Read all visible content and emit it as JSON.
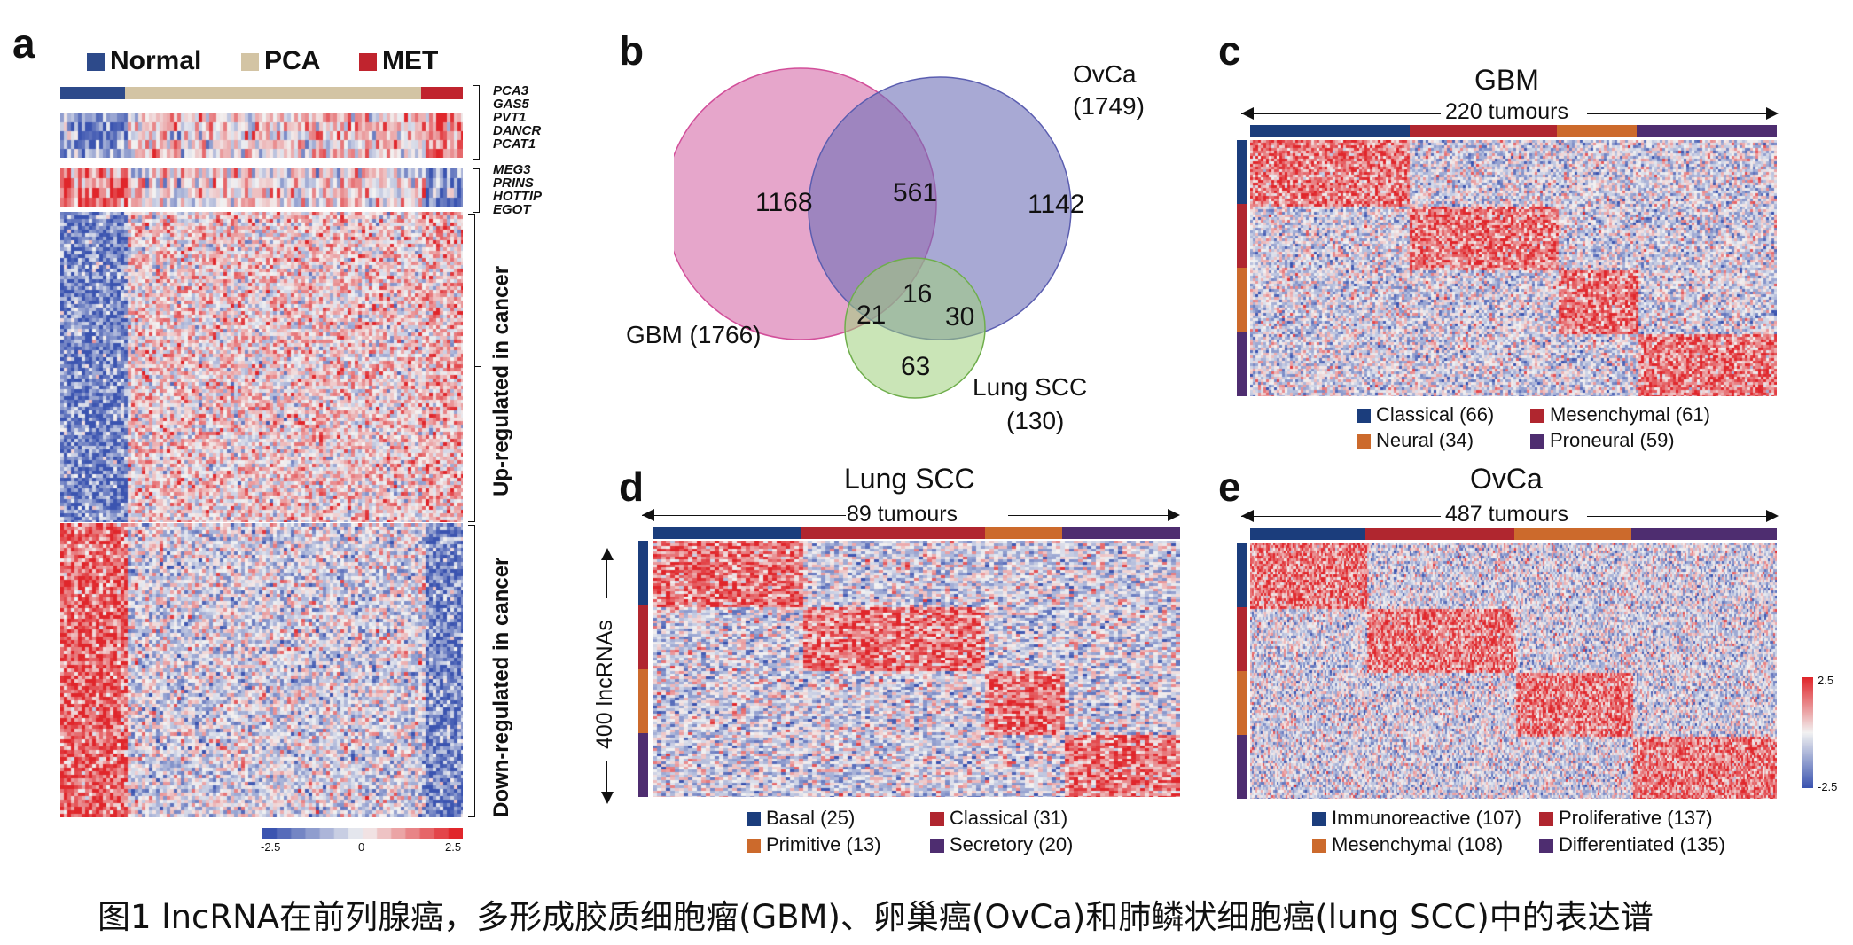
{
  "colors": {
    "normal": "#2d4a8a",
    "pca": "#d3c4a4",
    "met": "#c0242e",
    "heat_high": "#e0262b",
    "heat_mid": "#f2f2f2",
    "heat_low": "#3b54b0",
    "classical": "#1b3d7c",
    "mesenchymal": "#b0262f",
    "neural": "#cc6a2c",
    "proneural": "#4e2d70",
    "venn_gbm": "#d66aa8",
    "venn_ovca": "#7a7dc0",
    "venn_lung": "#9fd07c"
  },
  "panel_a": {
    "letter": "a",
    "legend": [
      {
        "label": "Normal",
        "color": "#2d4a8a"
      },
      {
        "label": "PCA",
        "color": "#d3c4a4"
      },
      {
        "label": "MET",
        "color": "#c0242e"
      }
    ],
    "genes_up": [
      "PCA3",
      "GAS5",
      "PVT1",
      "DANCR",
      "PCAT1"
    ],
    "genes_down": [
      "MEG3",
      "PRINS",
      "HOTTIP",
      "EGOT"
    ],
    "up_label": "Up-regulated in cancer",
    "down_label": "Down-regulated in cancer",
    "scale_min": "-2.5",
    "scale_mid": "0",
    "scale_max": "2.5"
  },
  "panel_b": {
    "letter": "b",
    "sets": {
      "gbm": "GBM (1766)",
      "ovca_name": "OvCa",
      "ovca_count": "(1749)",
      "lung_name": "Lung SCC",
      "lung_count": "(130)"
    },
    "regions": {
      "gbm_only": "1168",
      "gbm_ovca": "561",
      "ovca_only": "1142",
      "all_three": "16",
      "gbm_lung": "21",
      "ovca_lung": "30",
      "lung_only": "63"
    }
  },
  "panel_c": {
    "letter": "c",
    "title": "GBM",
    "subtitle": "220 tumours",
    "legend": [
      {
        "label": "Classical (66)",
        "color": "#1b3d7c"
      },
      {
        "label": "Mesenchymal (61)",
        "color": "#b0262f"
      },
      {
        "label": "Neural (34)",
        "color": "#cc6a2c"
      },
      {
        "label": "Proneural (59)",
        "color": "#4e2d70"
      }
    ]
  },
  "panel_d": {
    "letter": "d",
    "title": "Lung SCC",
    "subtitle": "89 tumours",
    "ylabel": "400 lncRNAs",
    "legend": [
      {
        "label": "Basal (25)",
        "color": "#1b3d7c"
      },
      {
        "label": "Classical (31)",
        "color": "#b0262f"
      },
      {
        "label": "Primitive (13)",
        "color": "#cc6a2c"
      },
      {
        "label": "Secretory (20)",
        "color": "#4e2d70"
      }
    ]
  },
  "panel_e": {
    "letter": "e",
    "title": "OvCa",
    "subtitle": "487 tumours",
    "scale_max": "2.5",
    "scale_min": "-2.5",
    "legend": [
      {
        "label": "Immunoreactive (107)",
        "color": "#1b3d7c"
      },
      {
        "label": "Proliferative (137)",
        "color": "#b0262f"
      },
      {
        "label": "Mesenchymal (108)",
        "color": "#cc6a2c"
      },
      {
        "label": "Differentiated (135)",
        "color": "#4e2d70"
      }
    ]
  },
  "caption": "图1 lncRNA在前列腺癌，多形成胶质细胞瘤(GBM)、卵巢癌(OvCa)和肺鳞状细胞癌(lung SCC)中的表达谱"
}
